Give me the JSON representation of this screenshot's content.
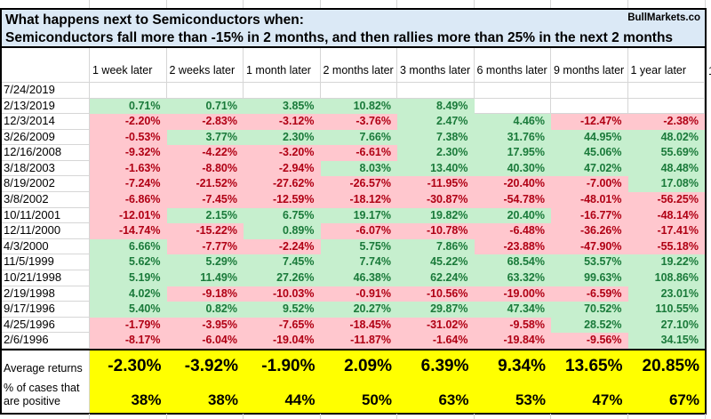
{
  "brand": "BullMarkets.co",
  "clipped_next_column_label": "1",
  "chart_data": {
    "type": "table",
    "title": "What happens next to Semiconductors when:",
    "subtitle": "Semiconductors fall more than -15% in 2 months, and then rallies more than 25% in the next 2 months",
    "columns": [
      "1 week later",
      "2 weeks later",
      "1 month later",
      "2 months later",
      "3 months later",
      "6 months later",
      "9 months later",
      "1 year later"
    ],
    "rows": [
      {
        "date": "7/24/2019",
        "values": [
          "",
          "",
          "",
          "",
          "",
          "",
          "",
          ""
        ]
      },
      {
        "date": "2/13/2019",
        "values": [
          "0.71%",
          "0.71%",
          "3.85%",
          "10.82%",
          "8.49%",
          "",
          "",
          ""
        ]
      },
      {
        "date": "12/3/2014",
        "values": [
          "-2.20%",
          "-2.83%",
          "-3.12%",
          "-3.76%",
          "2.47%",
          "4.46%",
          "-12.47%",
          "-2.38%"
        ]
      },
      {
        "date": "3/26/2009",
        "values": [
          "-0.53%",
          "3.77%",
          "2.30%",
          "7.66%",
          "7.38%",
          "31.76%",
          "44.95%",
          "48.02%"
        ]
      },
      {
        "date": "12/16/2008",
        "values": [
          "-9.32%",
          "-4.22%",
          "-3.20%",
          "-6.61%",
          "2.30%",
          "17.95%",
          "45.06%",
          "55.69%"
        ]
      },
      {
        "date": "3/18/2003",
        "values": [
          "-1.63%",
          "-8.80%",
          "-2.94%",
          "8.03%",
          "13.40%",
          "40.30%",
          "47.02%",
          "48.48%"
        ]
      },
      {
        "date": "8/19/2002",
        "values": [
          "-7.24%",
          "-21.52%",
          "-27.62%",
          "-26.57%",
          "-11.95%",
          "-20.40%",
          "-7.00%",
          "17.08%"
        ]
      },
      {
        "date": "3/8/2002",
        "values": [
          "-6.86%",
          "-7.45%",
          "-12.59%",
          "-18.12%",
          "-30.87%",
          "-54.78%",
          "-48.01%",
          "-56.25%"
        ]
      },
      {
        "date": "10/11/2001",
        "values": [
          "-12.01%",
          "2.15%",
          "6.75%",
          "19.17%",
          "19.82%",
          "20.40%",
          "-16.77%",
          "-48.14%"
        ]
      },
      {
        "date": "12/11/2000",
        "values": [
          "-14.74%",
          "-15.22%",
          "0.89%",
          "-6.07%",
          "-10.78%",
          "-6.48%",
          "-36.26%",
          "-17.41%"
        ]
      },
      {
        "date": "4/3/2000",
        "values": [
          "6.66%",
          "-7.77%",
          "-2.24%",
          "5.75%",
          "7.86%",
          "-23.88%",
          "-47.90%",
          "-55.18%"
        ]
      },
      {
        "date": "11/5/1999",
        "values": [
          "5.62%",
          "5.29%",
          "7.45%",
          "7.74%",
          "45.22%",
          "68.54%",
          "53.57%",
          "19.22%"
        ]
      },
      {
        "date": "10/21/1998",
        "values": [
          "5.19%",
          "11.49%",
          "27.26%",
          "46.38%",
          "62.24%",
          "63.32%",
          "99.63%",
          "108.86%"
        ]
      },
      {
        "date": "2/19/1998",
        "values": [
          "4.02%",
          "-9.18%",
          "-10.03%",
          "-0.91%",
          "-10.56%",
          "-19.00%",
          "-6.59%",
          "23.01%"
        ]
      },
      {
        "date": "9/17/1996",
        "values": [
          "5.40%",
          "0.82%",
          "9.52%",
          "20.27%",
          "29.87%",
          "47.34%",
          "70.52%",
          "110.55%"
        ]
      },
      {
        "date": "4/25/1996",
        "values": [
          "-1.79%",
          "-3.95%",
          "-7.65%",
          "-18.45%",
          "-31.02%",
          "-9.58%",
          "28.52%",
          "27.10%"
        ]
      },
      {
        "date": "2/6/1996",
        "values": [
          "-8.17%",
          "-6.04%",
          "-19.04%",
          "-11.87%",
          "-1.64%",
          "-19.84%",
          "-9.56%",
          "34.15%"
        ]
      }
    ],
    "summary": {
      "average_label": "Average returns",
      "averages": [
        "-2.30%",
        "-3.92%",
        "-1.90%",
        "2.09%",
        "6.39%",
        "9.34%",
        "13.65%",
        "20.85%"
      ],
      "positive_label": "% of cases that are positive",
      "positives": [
        "38%",
        "38%",
        "44%",
        "50%",
        "63%",
        "53%",
        "47%",
        "67%"
      ]
    },
    "legend": "green cells = positive return, pink cells = negative return, yellow = summary rows"
  },
  "colors": {
    "title_bg": "#dbe9f6",
    "pos_bg": "#c6efce",
    "pos_text": "#1a7a3a",
    "neg_bg": "#ffc7ce",
    "neg_text": "#b00014",
    "summary_bg": "#ffff00",
    "grid": "#d6d6d6",
    "border": "#000000"
  }
}
